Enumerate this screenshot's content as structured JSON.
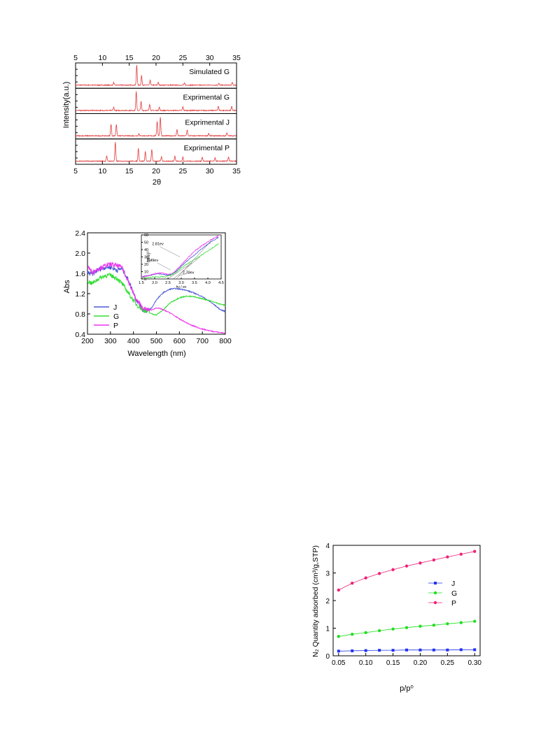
{
  "chart_data": [
    {
      "id": "xrd",
      "type": "line",
      "xlabel": "2θ",
      "ylabel": "Intensity(a.u.)",
      "xlim": [
        5,
        35
      ],
      "xticks": [
        5,
        10,
        15,
        20,
        25,
        30,
        35
      ],
      "top_axis_ticks": true,
      "panels": [
        {
          "label": "Simulated G",
          "color": "#e23b3b",
          "peaks": [
            [
              12.1,
              0.12
            ],
            [
              16.4,
              0.95
            ],
            [
              17.3,
              0.45
            ],
            [
              18.9,
              0.22
            ],
            [
              20.4,
              0.12
            ],
            [
              25.3,
              0.1
            ],
            [
              31.7,
              0.08
            ],
            [
              34.2,
              0.12
            ]
          ]
        },
        {
          "label": "Exprimental G",
          "color": "#e23b3b",
          "peaks": [
            [
              12.1,
              0.15
            ],
            [
              16.3,
              0.9
            ],
            [
              17.2,
              0.42
            ],
            [
              18.8,
              0.3
            ],
            [
              20.6,
              0.15
            ],
            [
              25.0,
              0.18
            ],
            [
              31.6,
              0.2
            ],
            [
              34.1,
              0.18
            ]
          ]
        },
        {
          "label": "Exprimental J",
          "color": "#e23b3b",
          "peaks": [
            [
              11.6,
              0.55
            ],
            [
              12.6,
              0.55
            ],
            [
              16.8,
              0.1
            ],
            [
              20.2,
              0.7
            ],
            [
              20.8,
              0.9
            ],
            [
              23.9,
              0.3
            ],
            [
              25.8,
              0.28
            ],
            [
              29.8,
              0.12
            ],
            [
              33.2,
              0.15
            ]
          ]
        },
        {
          "label": "Exprimental P",
          "color": "#e23b3b",
          "peaks": [
            [
              10.8,
              0.25
            ],
            [
              12.4,
              0.9
            ],
            [
              16.7,
              0.6
            ],
            [
              18.0,
              0.45
            ],
            [
              19.2,
              0.55
            ],
            [
              21.0,
              0.2
            ],
            [
              23.5,
              0.25
            ],
            [
              25.0,
              0.2
            ],
            [
              28.6,
              0.2
            ],
            [
              31.0,
              0.15
            ],
            [
              33.5,
              0.2
            ]
          ]
        }
      ]
    },
    {
      "id": "uvvis",
      "type": "line",
      "xlabel": "Wavelength (nm)",
      "ylabel": "Abs",
      "xlim": [
        200,
        800
      ],
      "ylim": [
        0.4,
        2.4
      ],
      "xticks": [
        200,
        300,
        400,
        500,
        600,
        700,
        800
      ],
      "yticks": [
        0.4,
        0.8,
        1.2,
        1.6,
        2.0,
        2.4
      ],
      "legend_position": "bottom-left",
      "series": [
        {
          "name": "J",
          "color": "#4a5bd6",
          "x": [
            200,
            220,
            250,
            280,
            300,
            330,
            350,
            380,
            410,
            440,
            460,
            480,
            500,
            530,
            560,
            580,
            620,
            660,
            700,
            740,
            780,
            800
          ],
          "y": [
            1.62,
            1.58,
            1.68,
            1.72,
            1.72,
            1.66,
            1.7,
            1.45,
            1.1,
            0.88,
            0.86,
            0.92,
            1.08,
            1.22,
            1.29,
            1.3,
            1.28,
            1.22,
            1.14,
            1.02,
            0.88,
            0.85
          ]
        },
        {
          "name": "G",
          "color": "#33dd33",
          "x": [
            200,
            220,
            250,
            280,
            300,
            330,
            350,
            380,
            410,
            440,
            460,
            480,
            500,
            530,
            560,
            600,
            630,
            660,
            700,
            740,
            780,
            800
          ],
          "y": [
            1.45,
            1.4,
            1.5,
            1.56,
            1.56,
            1.5,
            1.4,
            1.2,
            1.0,
            0.88,
            0.85,
            0.8,
            0.78,
            0.88,
            1.02,
            1.12,
            1.15,
            1.14,
            1.1,
            1.05,
            0.99,
            0.97
          ]
        },
        {
          "name": "P",
          "color": "#ee33ee",
          "x": [
            200,
            220,
            250,
            280,
            300,
            330,
            350,
            380,
            410,
            440,
            460,
            480,
            500,
            520,
            560,
            600,
            650,
            700,
            750,
            800
          ],
          "y": [
            1.75,
            1.62,
            1.7,
            1.75,
            1.78,
            1.75,
            1.72,
            1.42,
            1.1,
            0.92,
            0.88,
            0.88,
            0.92,
            0.9,
            0.82,
            0.7,
            0.58,
            0.5,
            0.45,
            0.42
          ]
        }
      ],
      "inset": {
        "xlabel": "hν / ev",
        "ylabel": "(αhν)²",
        "xlim": [
          1.5,
          4.5
        ],
        "ylim": [
          0,
          60
        ],
        "xticks": [
          1.5,
          2.0,
          2.5,
          3.0,
          3.5,
          4.0,
          4.5
        ],
        "yticks": [
          0,
          10,
          20,
          30,
          40,
          50,
          60
        ],
        "annotations": [
          "2.81ev",
          "2.49ev",
          "2.70ev"
        ],
        "series": [
          {
            "name": "J",
            "color": "#4a5bd6",
            "x": [
              1.5,
              1.8,
              2.1,
              2.3,
              2.5,
              2.7,
              2.9,
              3.2,
              3.5,
              3.8,
              4.1,
              4.4
            ],
            "y": [
              3,
              5,
              7,
              6,
              5,
              7,
              14,
              24,
              33,
              42,
              50,
              57
            ]
          },
          {
            "name": "G",
            "color": "#33dd33",
            "x": [
              1.5,
              1.8,
              2.1,
              2.4,
              2.6,
              2.8,
              3.0,
              3.3,
              3.6,
              3.9,
              4.2,
              4.4
            ],
            "y": [
              1,
              2,
              3,
              3,
              5,
              9,
              15,
              22,
              29,
              36,
              43,
              48
            ]
          },
          {
            "name": "P",
            "color": "#ee33ee",
            "x": [
              1.5,
              1.8,
              2.1,
              2.3,
              2.5,
              2.7,
              2.9,
              3.2,
              3.5,
              3.8,
              4.1,
              4.4
            ],
            "y": [
              2,
              5,
              8,
              8,
              6,
              8,
              15,
              27,
              38,
              46,
              53,
              59
            ]
          }
        ]
      }
    },
    {
      "id": "n2",
      "type": "scatter",
      "xlabel": "p/p⁰",
      "ylabel": "N₂ Quantity adsorbed (cm³/g,STP)",
      "xlim": [
        0.04,
        0.31
      ],
      "ylim": [
        0,
        4
      ],
      "xticks": [
        0.05,
        0.1,
        0.15,
        0.2,
        0.25,
        0.3
      ],
      "xtick_labels": [
        "0.05",
        "0.10",
        "0.15",
        "0.20",
        "0.25",
        "0.30"
      ],
      "yticks": [
        0,
        1,
        2,
        3,
        4
      ],
      "legend_position": "right",
      "series": [
        {
          "name": "J",
          "color": "#2233ee",
          "marker": "square",
          "x": [
            0.05,
            0.075,
            0.1,
            0.125,
            0.15,
            0.175,
            0.2,
            0.225,
            0.25,
            0.275,
            0.3
          ],
          "y": [
            0.17,
            0.18,
            0.19,
            0.2,
            0.2,
            0.21,
            0.21,
            0.21,
            0.21,
            0.22,
            0.22
          ]
        },
        {
          "name": "G",
          "color": "#22dd22",
          "marker": "circle",
          "x": [
            0.05,
            0.075,
            0.1,
            0.125,
            0.15,
            0.175,
            0.2,
            0.225,
            0.25,
            0.275,
            0.3
          ],
          "y": [
            0.7,
            0.78,
            0.84,
            0.91,
            0.97,
            1.02,
            1.07,
            1.11,
            1.16,
            1.2,
            1.25
          ]
        },
        {
          "name": "P",
          "color": "#ee2277",
          "marker": "circle",
          "x": [
            0.05,
            0.075,
            0.1,
            0.125,
            0.15,
            0.175,
            0.2,
            0.225,
            0.25,
            0.275,
            0.3
          ],
          "y": [
            2.38,
            2.63,
            2.82,
            2.98,
            3.12,
            3.25,
            3.36,
            3.47,
            3.58,
            3.68,
            3.78
          ]
        }
      ]
    }
  ]
}
